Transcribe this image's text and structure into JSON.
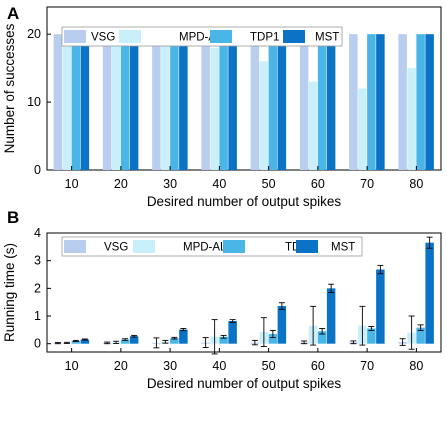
{
  "chart_data": [
    {
      "panel": "A",
      "type": "bar",
      "categories": [
        "10",
        "20",
        "30",
        "40",
        "50",
        "60",
        "70",
        "80"
      ],
      "series": [
        {
          "name": "VSG",
          "color": "#b9cdef",
          "values": [
            20,
            20,
            20,
            20,
            20,
            20,
            20,
            20
          ]
        },
        {
          "name": "MPD-AL",
          "color": "#c8effa",
          "values": [
            20,
            20,
            20,
            18,
            16,
            13,
            12,
            15
          ]
        },
        {
          "name": "TDP1",
          "color": "#4ab6e8",
          "values": [
            20,
            20,
            20,
            20,
            20,
            20,
            20,
            20
          ]
        },
        {
          "name": "MST",
          "color": "#0a73c6",
          "values": [
            20,
            20,
            20,
            20,
            20,
            20,
            20,
            20
          ]
        }
      ],
      "xlabel": "Desired number of output spikes",
      "ylabel": "Number of successes",
      "ylim": [
        0,
        24
      ],
      "yticks": [
        0,
        10,
        20
      ],
      "legend": "top"
    },
    {
      "panel": "B",
      "type": "bar",
      "categories": [
        "10",
        "20",
        "30",
        "40",
        "50",
        "60",
        "70",
        "80"
      ],
      "series": [
        {
          "name": "VSG",
          "color": "#b9cdef",
          "values": [
            0.02,
            0.03,
            0.03,
            0.04,
            0.04,
            0.05,
            0.05,
            0.06
          ],
          "errors": [
            0.02,
            0.03,
            0.18,
            0.18,
            0.08,
            0.05,
            0.05,
            0.12
          ]
        },
        {
          "name": "MPD-AL",
          "color": "#c8effa",
          "values": [
            0.03,
            0.05,
            0.07,
            0.25,
            0.42,
            0.65,
            0.65,
            0.4
          ],
          "errors": [
            0.02,
            0.04,
            0.05,
            0.62,
            0.52,
            0.7,
            0.7,
            0.6
          ]
        },
        {
          "name": "TDP1",
          "color": "#4ab6e8",
          "values": [
            0.1,
            0.15,
            0.2,
            0.25,
            0.35,
            0.45,
            0.55,
            0.58
          ],
          "errors": [
            0.02,
            0.03,
            0.03,
            0.05,
            0.13,
            0.1,
            0.07,
            0.1
          ]
        },
        {
          "name": "MST",
          "color": "#0a73c6",
          "values": [
            0.15,
            0.27,
            0.51,
            0.82,
            1.36,
            2.0,
            2.68,
            3.65
          ],
          "errors": [
            0.02,
            0.03,
            0.04,
            0.05,
            0.12,
            0.15,
            0.15,
            0.2
          ]
        }
      ],
      "xlabel": "Desired number of output spikes",
      "ylabel": "Running time (s)",
      "ylim": [
        -0.3,
        4
      ],
      "yticks": [
        0,
        1,
        2,
        3,
        4
      ],
      "legend": "top"
    }
  ]
}
